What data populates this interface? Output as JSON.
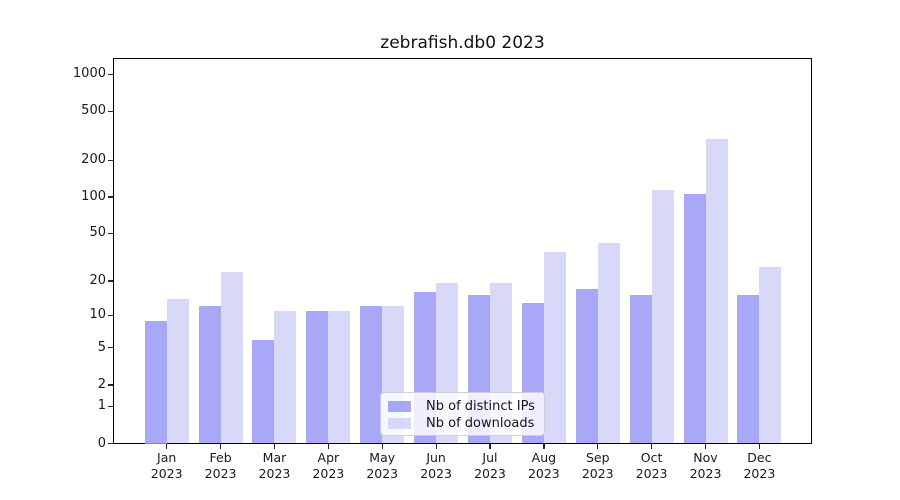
{
  "title": "zebrafish.db0 2023",
  "chart_data": {
    "type": "bar",
    "title": "zebrafish.db0 2023",
    "year_label": "2023",
    "categories": [
      "Jan",
      "Feb",
      "Mar",
      "Apr",
      "May",
      "Jun",
      "Jul",
      "Aug",
      "Sep",
      "Oct",
      "Nov",
      "Dec"
    ],
    "series": [
      {
        "name": "Nb of distinct IPs",
        "values": [
          9,
          12,
          6,
          11,
          12,
          16,
          15,
          13,
          17,
          15,
          106,
          15
        ]
      },
      {
        "name": "Nb of downloads",
        "values": [
          14,
          24,
          11,
          11,
          12,
          19,
          19,
          35,
          42,
          115,
          300,
          26
        ]
      }
    ],
    "y_ticks": [
      0,
      1,
      2,
      5,
      10,
      20,
      50,
      100,
      200,
      500,
      1000
    ],
    "scale": "log10(1+x)",
    "ylim": [
      0,
      1334
    ],
    "grid": true,
    "legend_position": "lower center"
  },
  "colors": {
    "ips_color": "#9999f6",
    "downloads_color": "#d1d1f8",
    "bar_alpha": 0.85,
    "grid_major": "#b9b9b9",
    "grid_minor": "#ebebeb",
    "axis_color": "#000000"
  }
}
